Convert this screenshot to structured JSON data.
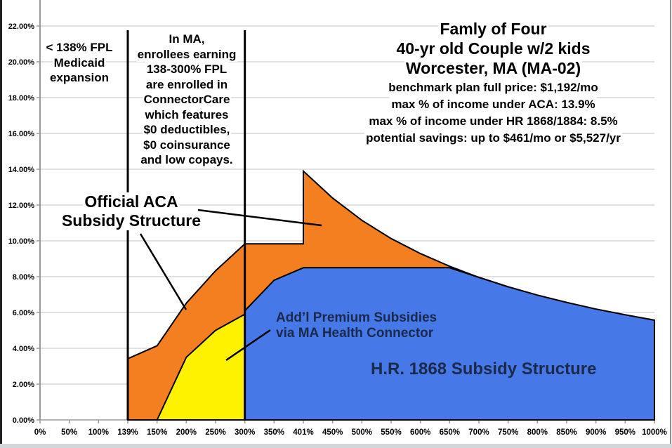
{
  "title": {
    "lines": [
      "Famly of Four",
      "40-yr old Couple w/2 kids",
      "Worcester, MA (MA-02)"
    ],
    "details": [
      "benchmark plan full price: $1,192/mo",
      "max % of income under ACA: 13.9%",
      "max % of income under HR 1868/1884: 8.5%",
      "potential savings: up to $461/mo or $5,527/yr"
    ]
  },
  "annotations": {
    "medicaid_note": "< 138% FPL\nMedicaid\nexpansion",
    "ma_note": "In MA,\nenrollees earning\n138-300% FPL\nare enrolled in\nConnectorCare\nwhich features\n$0 deductibles,\n$0 coinsurance\nand low copays.",
    "aca_label": "Official ACA\nSubsidy Structure",
    "addl_label": "Add’l Premium Subsidies\nvia MA Health Connector",
    "hr_label": "H.R. 1868 Subsidy Structure"
  },
  "chart_data": {
    "type": "area",
    "title": "Famly of Four, 40-yr old Couple w/2 kids, Worcester, MA (MA-02)",
    "xlabel": "",
    "ylabel": "",
    "categories": [
      "0%",
      "50%",
      "100%",
      "139%",
      "150%",
      "200%",
      "250%",
      "300%",
      "350%",
      "401%",
      "450%",
      "500%",
      "550%",
      "600%",
      "650%",
      "700%",
      "750%",
      "800%",
      "850%",
      "900%",
      "950%",
      "1000%"
    ],
    "y_ticks": [
      "0.00%",
      "2.00%",
      "4.00%",
      "6.00%",
      "8.00%",
      "10.00%",
      "12.00%",
      "14.00%",
      "16.00%",
      "18.00%",
      "20.00%",
      "22.00%"
    ],
    "ylim": [
      0,
      23.45
    ],
    "grid": true,
    "legend_position": "none (labels annotated on chart)",
    "marker_vlines": [
      "139%",
      "300%"
    ],
    "series": [
      {
        "name": "Official ACA Subsidy Structure",
        "color": "#F47F20",
        "points": [
          [
            "139%",
            3.42
          ],
          [
            "150%",
            4.14
          ],
          [
            "200%",
            6.52
          ],
          [
            "250%",
            8.33
          ],
          [
            "300%",
            9.83
          ],
          [
            "350%",
            9.83
          ],
          [
            "401%",
            9.83
          ],
          [
            "401%",
            13.9
          ],
          [
            "450%",
            12.39
          ],
          [
            "500%",
            11.15
          ],
          [
            "550%",
            10.13
          ],
          [
            "600%",
            9.29
          ],
          [
            "650%",
            8.58
          ],
          [
            "700%",
            7.96
          ],
          [
            "750%",
            7.43
          ],
          [
            "800%",
            6.97
          ],
          [
            "850%",
            6.56
          ],
          [
            "900%",
            6.19
          ],
          [
            "950%",
            5.87
          ],
          [
            "1000%",
            5.57
          ]
        ]
      },
      {
        "name": "Add'l Premium Subsidies via MA Health Connector",
        "color": "#FFF200",
        "points": [
          [
            "150%",
            0
          ],
          [
            "200%",
            3.5
          ],
          [
            "250%",
            5.0
          ],
          [
            "300%",
            5.9
          ]
        ]
      },
      {
        "name": "H.R. 1868 Subsidy Structure",
        "color": "#4778E8",
        "points": [
          [
            "300%",
            6.1
          ],
          [
            "350%",
            7.8
          ],
          [
            "401%",
            8.5
          ],
          [
            "650%",
            8.5
          ],
          [
            "700%",
            7.96
          ],
          [
            "750%",
            7.43
          ],
          [
            "800%",
            6.97
          ],
          [
            "850%",
            6.56
          ],
          [
            "900%",
            6.19
          ],
          [
            "950%",
            5.87
          ],
          [
            "1000%",
            5.57
          ]
        ]
      }
    ],
    "style": {
      "grid_color": "#c3c3c3",
      "axis_color": "#9a9a9a",
      "outline_color": "#000000",
      "threshold_line_color": "#000000",
      "annotation_text_color": "#1b2a4a"
    }
  }
}
